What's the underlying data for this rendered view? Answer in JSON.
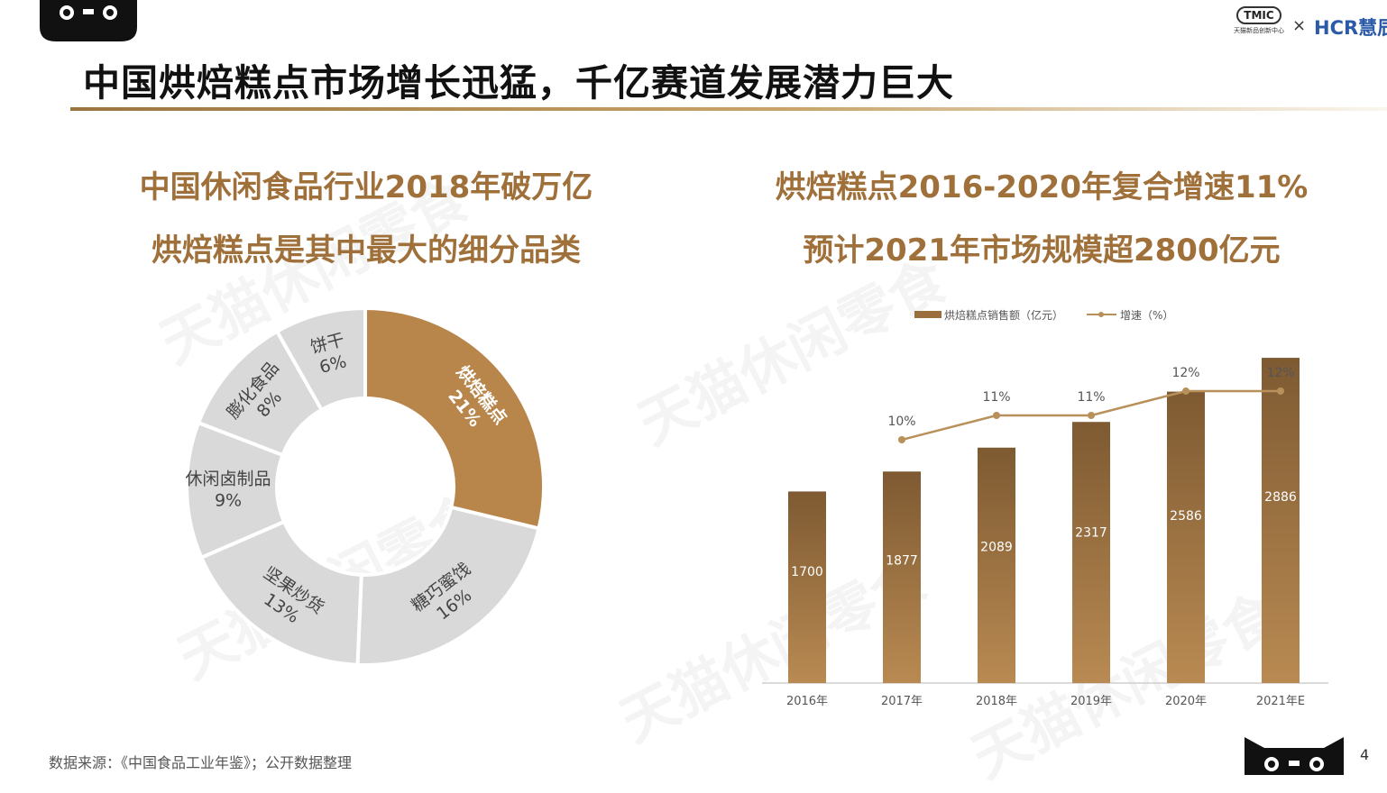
{
  "header": {
    "title": "中国烘焙糕点市场增长迅猛，千亿赛道发展潜力巨大",
    "brand": {
      "logo_mark": "TMIC",
      "logo_sub": "天猫新品创新中心",
      "cross": "×",
      "partner": "HCR慧辰"
    }
  },
  "left_panel": {
    "headline_1": "中国休闲食品行业2018年破万亿",
    "headline_2": "烘焙糕点是其中最大的细分品类"
  },
  "right_panel": {
    "headline_1": "烘焙糕点2016-2020年复合增速11%",
    "headline_2": "预计2021年市场规模超2800亿元"
  },
  "watermark": "天猫休闲零食",
  "chart_data": [
    {
      "type": "pie",
      "variant": "donut",
      "labels": [
        "烘焙糕点",
        "糖巧蜜饯",
        "坚果炒货",
        "休闲卤制品",
        "膨化食品",
        "饼干"
      ],
      "values": [
        21,
        16,
        13,
        9,
        8,
        6
      ],
      "value_labels": [
        "21%",
        "16%",
        "13%",
        "9%",
        "8%",
        "6%"
      ],
      "colors": [
        "#b8864a",
        "#d9d9d9",
        "#d9d9d9",
        "#d9d9d9",
        "#d9d9d9",
        "#d9d9d9"
      ]
    },
    {
      "type": "bar",
      "categories": [
        "2016年",
        "2017年",
        "2018年",
        "2019年",
        "2020年",
        "2021年E"
      ],
      "legend_position": "top",
      "series": [
        {
          "name": "烘焙糕点销售额（亿元）",
          "type": "bar",
          "values": [
            1700,
            1877,
            2089,
            2317,
            2586,
            2886
          ],
          "value_labels": [
            "1700",
            "1877",
            "2089",
            "2317",
            "2586",
            "2886"
          ],
          "color": "#9a6f3d"
        },
        {
          "name": "增速（%）",
          "type": "line",
          "values": [
            null,
            10,
            11,
            11,
            12,
            12
          ],
          "value_labels": [
            "",
            "10%",
            "11%",
            "11%",
            "12%",
            "12%"
          ],
          "color": "#b8905a"
        }
      ],
      "ylim": [
        0,
        3000
      ],
      "grid": false
    }
  ],
  "footer": {
    "source": "数据来源：《中国食品工业年鉴》；公开数据整理",
    "page_number": "4"
  }
}
